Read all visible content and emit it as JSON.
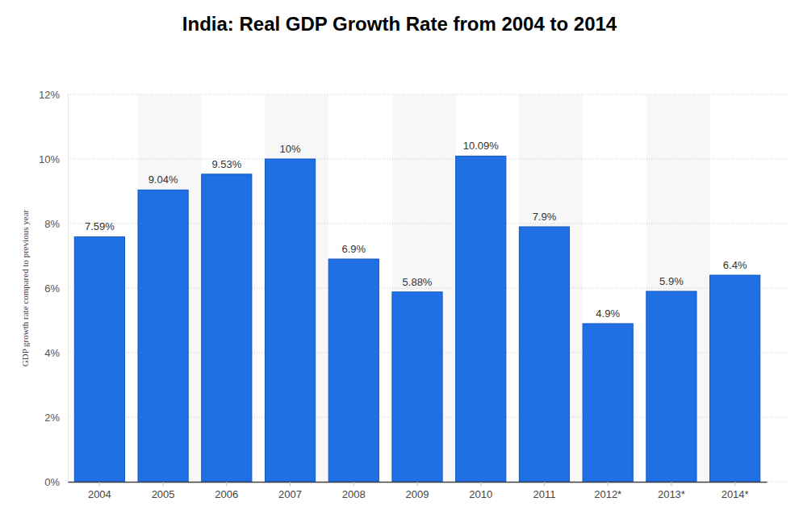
{
  "chart_data": {
    "type": "bar",
    "title": "India: Real GDP Growth Rate from 2004 to 2014",
    "ylabel": "GDP growth rate compared to previous year",
    "categories": [
      "2004",
      "2005",
      "2006",
      "2007",
      "2008",
      "2009",
      "2010",
      "2011",
      "2012*",
      "2013*",
      "2014*"
    ],
    "values": [
      7.59,
      9.04,
      9.53,
      10,
      6.9,
      5.88,
      10.09,
      7.9,
      4.9,
      5.9,
      6.4
    ],
    "value_labels": [
      "7.59%",
      "9.04%",
      "9.53%",
      "10%",
      "6.9%",
      "5.88%",
      "10.09%",
      "7.9%",
      "4.9%",
      "5.9%",
      "6.4%"
    ],
    "color": "#1f6fe5",
    "ylim": [
      0,
      12
    ],
    "yticks": [
      {
        "value": 0,
        "label": "0%"
      },
      {
        "value": 2,
        "label": "2%"
      },
      {
        "value": 4,
        "label": "4%"
      },
      {
        "value": 6,
        "label": "6%"
      },
      {
        "value": 8,
        "label": "8%"
      },
      {
        "value": 10,
        "label": "10%"
      },
      {
        "value": 12,
        "label": "12%"
      }
    ],
    "grid": true,
    "data_labels": true
  }
}
